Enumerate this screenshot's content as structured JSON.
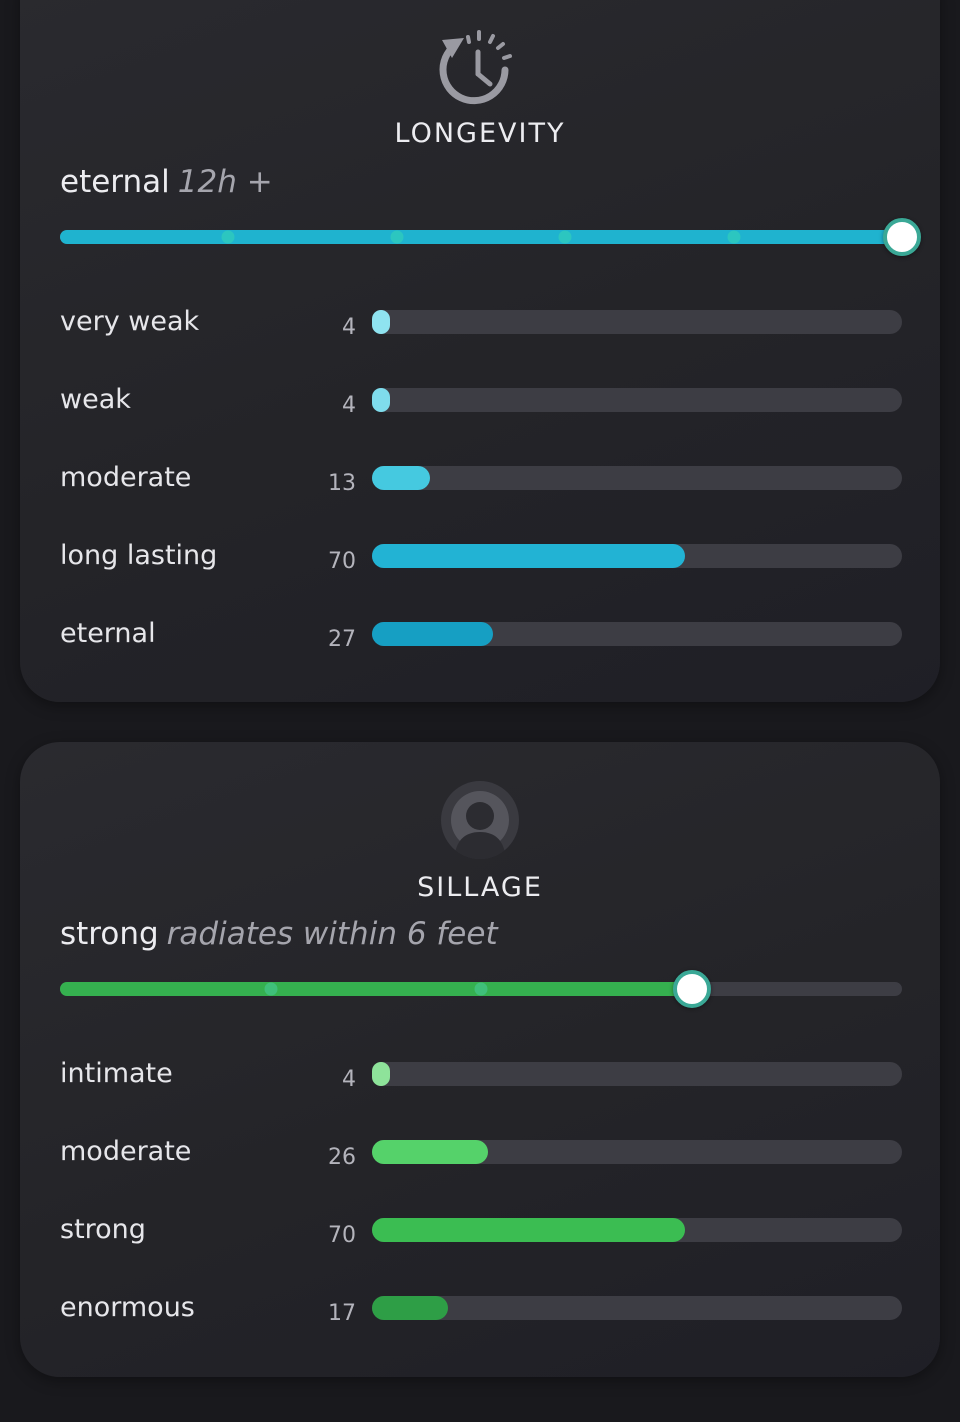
{
  "longevity": {
    "title": "LONGEVITY",
    "icon": "clock-history-icon",
    "verdict": {
      "label": "eternal",
      "detail": "12h +"
    },
    "slider": {
      "position": 1.0,
      "ticks": 4,
      "color": "#1fb3cf"
    },
    "rows": [
      {
        "label": "very weak",
        "count": "4",
        "value": 4,
        "color": "#8fe3f0"
      },
      {
        "label": "weak",
        "count": "4",
        "value": 4,
        "color": "#7fdcec"
      },
      {
        "label": "moderate",
        "count": "13",
        "value": 13,
        "color": "#45c9e0"
      },
      {
        "label": "long lasting",
        "count": "70",
        "value": 70,
        "color": "#22b3d4"
      },
      {
        "label": "eternal",
        "count": "27",
        "value": 27,
        "color": "#169fc3"
      }
    ]
  },
  "sillage": {
    "title": "SILLAGE",
    "icon": "person-aura-icon",
    "verdict": {
      "label": "strong",
      "detail": "radiates within 6 feet"
    },
    "slider": {
      "position": 0.75,
      "ticks": 2,
      "color": "#35b04f"
    },
    "rows": [
      {
        "label": "intimate",
        "count": "4",
        "value": 4,
        "color": "#8ee39a"
      },
      {
        "label": "moderate",
        "count": "26",
        "value": 26,
        "color": "#55d26a"
      },
      {
        "label": "strong",
        "count": "70",
        "value": 70,
        "color": "#3bbd52"
      },
      {
        "label": "enormous",
        "count": "17",
        "value": 17,
        "color": "#2e9e46"
      }
    ]
  }
}
